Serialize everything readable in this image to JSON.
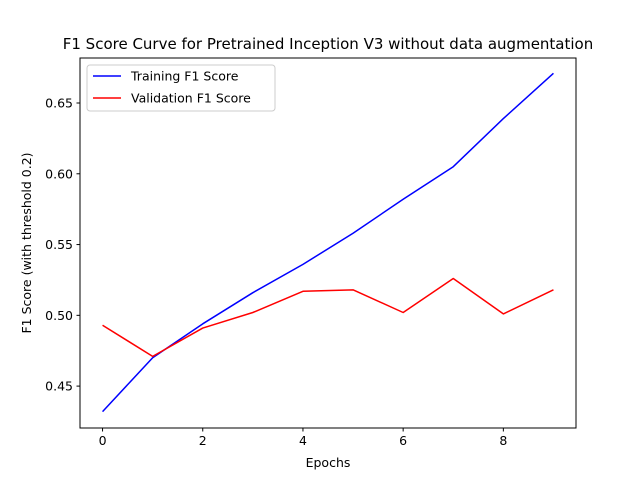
{
  "chart_data": {
    "type": "line",
    "title": "F1 Score Curve for Pretrained Inception V3 without data augmentation",
    "xlabel": "Epochs",
    "ylabel": "F1 Score (with threshold 0.2)",
    "x": [
      0,
      1,
      2,
      3,
      4,
      5,
      6,
      7,
      8,
      9
    ],
    "xlim": [
      -0.45,
      9.45
    ],
    "ylim": [
      0.4204,
      0.6818
    ],
    "xticks": [
      0,
      2,
      4,
      6,
      8
    ],
    "yticks": [
      0.45,
      0.5,
      0.55,
      0.6,
      0.65
    ],
    "xtick_labels": [
      "0",
      "2",
      "4",
      "6",
      "8"
    ],
    "ytick_labels": [
      "0.45",
      "0.50",
      "0.55",
      "0.60",
      "0.65"
    ],
    "grid": false,
    "legend_position": "top-left",
    "series": [
      {
        "name": "Training F1 Score",
        "color": "#0000ff",
        "values": [
          0.432,
          0.47,
          0.494,
          0.516,
          0.536,
          0.558,
          0.582,
          0.605,
          0.639,
          0.671
        ]
      },
      {
        "name": "Validation F1 Score",
        "color": "#ff0000",
        "values": [
          0.493,
          0.471,
          0.491,
          0.502,
          0.517,
          0.518,
          0.502,
          0.526,
          0.501,
          0.518
        ]
      }
    ]
  }
}
